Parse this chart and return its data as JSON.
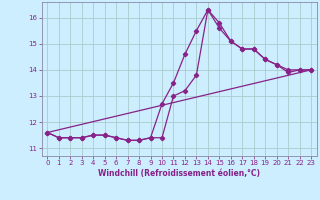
{
  "xlabel": "Windchill (Refroidissement éolien,°C)",
  "background_color": "#cceeff",
  "grid_color": "#aacccc",
  "line_color": "#882288",
  "spine_color": "#8888aa",
  "xlim": [
    -0.5,
    23.5
  ],
  "ylim": [
    10.7,
    16.6
  ],
  "xticks": [
    0,
    1,
    2,
    3,
    4,
    5,
    6,
    7,
    8,
    9,
    10,
    11,
    12,
    13,
    14,
    15,
    16,
    17,
    18,
    19,
    20,
    21,
    22,
    23
  ],
  "yticks": [
    11,
    12,
    13,
    14,
    15,
    16
  ],
  "series1_x": [
    0,
    1,
    2,
    3,
    4,
    5,
    6,
    7,
    8,
    9,
    10,
    11,
    12,
    13,
    14,
    15,
    16,
    17,
    18,
    19,
    20,
    21,
    22,
    23
  ],
  "series1_y": [
    11.6,
    11.4,
    11.4,
    11.4,
    11.5,
    11.5,
    11.4,
    11.3,
    11.3,
    11.4,
    11.4,
    13.0,
    13.2,
    13.8,
    16.3,
    15.6,
    15.1,
    14.8,
    14.8,
    14.4,
    14.2,
    13.9,
    14.0,
    14.0
  ],
  "series2_x": [
    0,
    1,
    2,
    3,
    4,
    5,
    6,
    7,
    8,
    9,
    10,
    11,
    12,
    13,
    14,
    15,
    16,
    17,
    18,
    19,
    20,
    21,
    22,
    23
  ],
  "series2_y": [
    11.6,
    11.4,
    11.4,
    11.4,
    11.5,
    11.5,
    11.4,
    11.3,
    11.3,
    11.4,
    12.7,
    13.5,
    14.6,
    15.5,
    16.3,
    15.8,
    15.1,
    14.8,
    14.8,
    14.4,
    14.2,
    14.0,
    14.0,
    14.0
  ],
  "series3_x": [
    0,
    23
  ],
  "series3_y": [
    11.6,
    14.0
  ]
}
